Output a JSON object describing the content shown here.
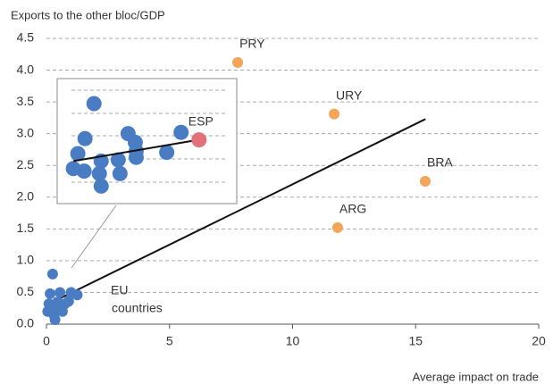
{
  "chart_data": {
    "type": "scatter",
    "y_axis_label": "Exports to the other bloc/GDP",
    "x_axis_label": "Average impact on trade",
    "xlim": [
      0,
      20
    ],
    "ylim": [
      0,
      4.5
    ],
    "xticks": [
      0,
      5,
      10,
      15,
      20
    ],
    "yticks": [
      {
        "value": 0,
        "label": "0.0"
      },
      0.5,
      {
        "value": 1,
        "label": "1.0"
      },
      1.5,
      {
        "value": 2,
        "label": "2.0"
      },
      2.5,
      {
        "value": 3,
        "label": "3.0"
      },
      3.5,
      {
        "value": 4,
        "label": "4.0"
      },
      4.5
    ],
    "grid": true,
    "series": [
      {
        "color": "#4a7cc4",
        "x": [
          0.25,
          0.15,
          0.1,
          0.05,
          0.3,
          0.35,
          0.55,
          0.55,
          0.75,
          0.9,
          1.0,
          1.25,
          0.45,
          0.2,
          0.65
        ],
        "y": [
          0.79,
          0.48,
          0.32,
          0.2,
          0.15,
          0.07,
          0.22,
          0.5,
          0.32,
          0.36,
          0.5,
          0.46,
          0.35,
          0.27,
          0.2
        ]
      },
      {
        "color": "#f3a55a",
        "x": [
          7.77,
          11.69,
          15.39,
          11.83
        ],
        "y": [
          4.12,
          3.31,
          2.25,
          1.52
        ],
        "labels": [
          "PRY",
          "URY",
          "BRA",
          "ARG"
        ]
      }
    ],
    "trend_line": {
      "x": [
        0.1,
        15.4
      ],
      "y": [
        0.32,
        3.23
      ]
    },
    "annotation_lines": [
      "EU",
      "countries"
    ],
    "inset": {
      "xlim": [
        0,
        2
      ],
      "ylim": [
        0,
        1
      ],
      "points": {
        "color": "#4a7cc4",
        "x": [
          0.41,
          0.31,
          0.23,
          0.18,
          0.3,
          0.47,
          0.49,
          0.49,
          0.68,
          0.7,
          0.79,
          0.87,
          0.88,
          0.88,
          1.22,
          1.38
        ],
        "y": [
          0.8,
          0.52,
          0.4,
          0.28,
          0.26,
          0.24,
          0.34,
          0.14,
          0.35,
          0.24,
          0.56,
          0.49,
          0.37,
          0.42,
          0.41,
          0.57
        ]
      },
      "highlight": {
        "label": "ESP",
        "x": 1.58,
        "y": 0.51,
        "color": "#e0707a"
      },
      "trend": {
        "x": [
          0.18,
          1.57
        ],
        "y": [
          0.34,
          0.51
        ]
      }
    }
  }
}
